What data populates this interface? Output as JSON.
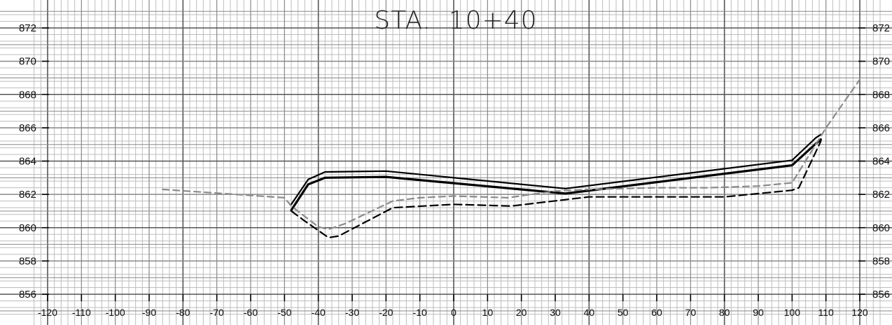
{
  "chart_data": {
    "type": "line",
    "title": "STA.  10+40",
    "xlabel": "",
    "ylabel": "",
    "xlim": [
      -120,
      120
    ],
    "ylim": [
      856,
      872
    ],
    "x_ticks": [
      -120,
      -110,
      -100,
      -90,
      -80,
      -70,
      -60,
      -50,
      -40,
      -30,
      -20,
      -10,
      0,
      10,
      20,
      30,
      40,
      50,
      60,
      70,
      80,
      90,
      100,
      110,
      120
    ],
    "y_ticks": [
      872,
      870,
      868,
      866,
      864,
      862,
      860,
      858,
      856
    ],
    "y_tick_labels_left": [
      "872",
      "870",
      "868",
      "866",
      "864",
      "862",
      "860",
      "858",
      "856"
    ],
    "y_tick_labels_right": [
      "872",
      "870",
      "868",
      "866",
      "864",
      "862",
      "860",
      "858",
      "856"
    ],
    "grid": true,
    "legend": "none",
    "series": [
      {
        "style": "solid-black-top",
        "color": "#000000",
        "x": [
          -48,
          -43,
          -38,
          -20,
          33,
          100,
          107,
          108.5
        ],
        "y": [
          861.4,
          862.9,
          863.35,
          863.4,
          862.35,
          864.05,
          865.4,
          865.6
        ]
      },
      {
        "style": "solid-black-bottom",
        "color": "#000000",
        "x": [
          -48,
          -43,
          -38,
          -20,
          33,
          100,
          107,
          108.5
        ],
        "y": [
          861.05,
          862.6,
          863.0,
          863.05,
          862.05,
          863.75,
          865.05,
          865.3
        ]
      },
      {
        "style": "dashed-gray",
        "color": "#8a8a8a",
        "x": [
          -86,
          -50,
          -48,
          -40,
          -37,
          -32,
          -18,
          -10,
          0,
          16,
          30,
          40,
          60,
          75,
          90,
          100,
          110,
          120
        ],
        "y": [
          862.3,
          861.8,
          861.3,
          860.05,
          859.9,
          860.25,
          861.6,
          861.8,
          861.9,
          861.8,
          862.2,
          862.3,
          862.4,
          862.4,
          862.5,
          862.7,
          866.0,
          868.9
        ]
      },
      {
        "style": "dashed-black",
        "color": "#000000",
        "x": [
          -48,
          -44,
          -37,
          -34,
          -18,
          0,
          17,
          40,
          60,
          80,
          100,
          102,
          108.5
        ],
        "y": [
          861.0,
          860.4,
          859.4,
          859.5,
          861.2,
          861.4,
          861.3,
          861.85,
          861.85,
          861.85,
          862.25,
          862.4,
          865.2
        ]
      }
    ]
  }
}
